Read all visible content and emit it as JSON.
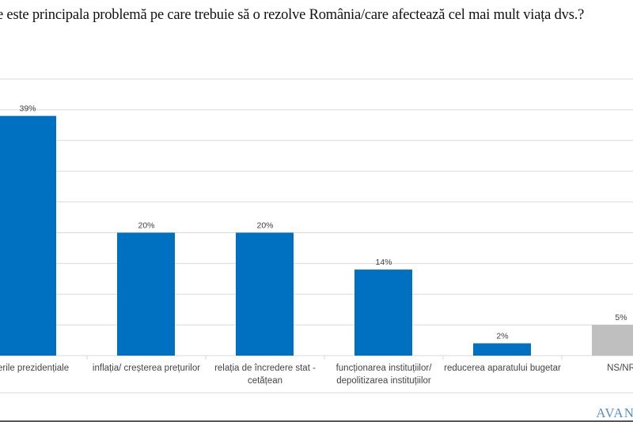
{
  "chart_data": {
    "type": "bar",
    "title": "e este principala problemă pe care trebuie să o rezolve România/care afectează cel mai mult viața dvs.?",
    "categories": [
      "erile  prezidențiale",
      "inflația/ creșterea prețurilor",
      "relația de încredere stat - cetățean",
      "funcționarea instituțiilor/ depolitizarea instituțiilor",
      "reducerea aparatului bugetar",
      "NS/NR"
    ],
    "values": [
      39,
      20,
      20,
      14,
      2,
      5
    ],
    "data_labels": [
      "39%",
      "20%",
      "20%",
      "14%",
      "2%",
      "5%"
    ],
    "colors": [
      "#0070c0",
      "#0070c0",
      "#0070c0",
      "#0070c0",
      "#0070c0",
      "#bfbfbf"
    ],
    "ylim": [
      0,
      45
    ],
    "grid": true,
    "xlabel": "",
    "ylabel": ""
  },
  "logo": "AVAN"
}
